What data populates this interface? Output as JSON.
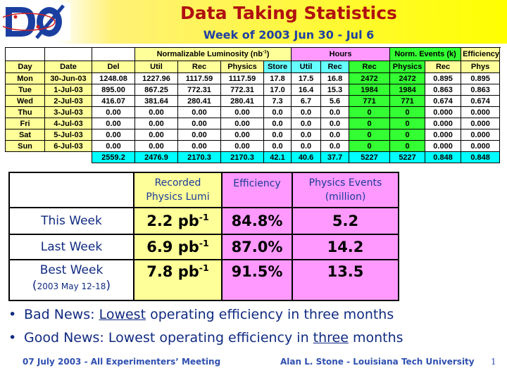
{
  "header": {
    "logo_text": "DØ",
    "title": "Data Taking Statistics",
    "subtitle": "Week of 2003 Jun 30 - Jul 6"
  },
  "data_table": {
    "group_headers": {
      "lum": "Normalizable Luminosity (nb",
      "lum_sup": "-1",
      "lum_close": ")",
      "hours": "Hours",
      "events": "Norm. Events (k)",
      "efficiency": "Efficiency"
    },
    "columns": [
      "Day",
      "Date",
      "Del",
      "Util",
      "Rec",
      "Physics",
      "Store",
      "Util",
      "Rec",
      "Rec",
      "Physics",
      "Rec",
      "Phys"
    ],
    "rows": [
      [
        "Mon",
        "30-Jun-03",
        "1248.08",
        "1227.96",
        "1117.59",
        "1117.59",
        "17.8",
        "17.5",
        "16.8",
        "2472",
        "2472",
        "0.895",
        "0.895"
      ],
      [
        "Tue",
        "1-Jul-03",
        "895.00",
        "867.25",
        "772.31",
        "772.31",
        "17.0",
        "16.4",
        "15.3",
        "1984",
        "1984",
        "0.863",
        "0.863"
      ],
      [
        "Wed",
        "2-Jul-03",
        "416.07",
        "381.64",
        "280.41",
        "280.41",
        "7.3",
        "6.7",
        "5.6",
        "771",
        "771",
        "0.674",
        "0.674"
      ],
      [
        "Thu",
        "3-Jul-03",
        "0.00",
        "0.00",
        "0.00",
        "0.00",
        "0.0",
        "0.0",
        "0.0",
        "0",
        "0",
        "0.000",
        "0.000"
      ],
      [
        "Fri",
        "4-Jul-03",
        "0.00",
        "0.00",
        "0.00",
        "0.00",
        "0.0",
        "0.0",
        "0.0",
        "0",
        "0",
        "0.000",
        "0.000"
      ],
      [
        "Sat",
        "5-Jul-03",
        "0.00",
        "0.00",
        "0.00",
        "0.00",
        "0.0",
        "0.0",
        "0.0",
        "0",
        "0",
        "0.000",
        "0.000"
      ],
      [
        "Sun",
        "6-Jul-03",
        "0.00",
        "0.00",
        "0.00",
        "0.00",
        "0.0",
        "0.0",
        "0.0",
        "0",
        "0",
        "0.000",
        "0.000"
      ]
    ],
    "totals": [
      "2559.2",
      "2476.9",
      "2170.3",
      "2170.3",
      "42.1",
      "40.6",
      "37.7",
      "5227",
      "5227",
      "0.848",
      "0.848"
    ]
  },
  "summary": {
    "headers": {
      "lumi_line1": "Recorded",
      "lumi_line2": "Physics Lumi",
      "efficiency": "Efficiency",
      "events_line1": "Physics Events",
      "events_line2": "(million)"
    },
    "rows": [
      {
        "label": "This Week",
        "lumi": "2.2 pb",
        "lumi_sup": "-1",
        "eff": "84.8%",
        "events": "5.2"
      },
      {
        "label": "Last Week",
        "lumi": "6.9 pb",
        "lumi_sup": "-1",
        "eff": "87.0%",
        "events": "14.2"
      },
      {
        "label": "Best Week",
        "label_note": "2003 May 12-18",
        "note_open": "(",
        "note_close": ")",
        "lumi": "7.8 pb",
        "lumi_sup": "-1",
        "eff": "91.5%",
        "events": "13.5"
      }
    ]
  },
  "bullets": {
    "b1_pre": "Bad News: ",
    "b1_u": "Lowest",
    "b1_post": " operating efficiency in three months",
    "b2_pre": "Good News: Lowest operating efficiency in ",
    "b2_u": "three",
    "b2_post": " months",
    "dot": "•"
  },
  "footer": {
    "left": "07 July 2003  - All Experimenters’ Meeting",
    "right": "Alan L. Stone  -  Louisiana Tech University",
    "page": "1"
  },
  "colors": {
    "title": "#b01010",
    "subtitle": "#2040a0",
    "header_bg": "#ffff00",
    "lum_bg": "#ffff99",
    "hours_bg": "#66ffff",
    "events_bg": "#33ff33",
    "pink": "#ff99ff"
  }
}
